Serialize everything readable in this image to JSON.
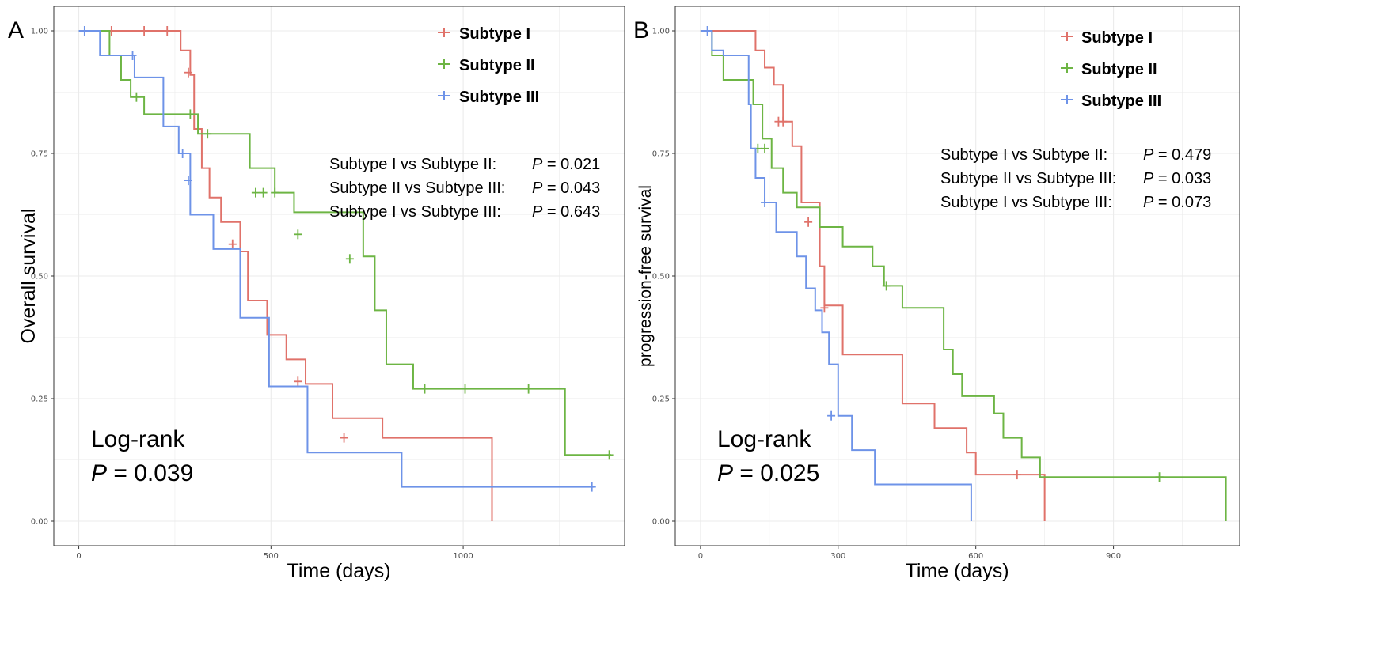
{
  "colors": {
    "subtype_I": "#E0726A",
    "subtype_II": "#6DB544",
    "subtype_III": "#6E93E8",
    "grid": "#ebebeb",
    "panel_border": "#333333"
  },
  "chart_data": [
    {
      "panel": "A",
      "type": "line",
      "step": "post",
      "xlabel": "Time (days)",
      "ylabel": "Overall survival",
      "xlim": [
        -65,
        1420
      ],
      "ylim": [
        -0.05,
        1.05
      ],
      "x_ticks": [
        0,
        500,
        1000
      ],
      "x_tick_labels": [
        "0",
        "500",
        "1000"
      ],
      "y_ticks": [
        0,
        0.25,
        0.5,
        0.75,
        1.0
      ],
      "y_tick_labels": [
        "0.00",
        "0.25",
        "0.50",
        "0.75",
        "1.00"
      ],
      "legend": {
        "position": "top-right",
        "entries": [
          "Subtype I",
          "Subtype II",
          "Subtype III"
        ]
      },
      "annotations": {
        "comparisons": [
          {
            "label": "Subtype I  vs Subtype II:",
            "p_prefix": "P",
            "p_text": " = 0.021"
          },
          {
            "label": "Subtype II vs Subtype III:",
            "p_prefix": "P",
            "p_text": " = 0.043"
          },
          {
            "label": "Subtype I  vs Subtype III:",
            "p_prefix": "P",
            "p_text": " = 0.643"
          }
        ],
        "logrank_title": "Log-rank",
        "logrank_prefix": "P",
        "logrank_text": " = 0.039"
      },
      "series": [
        {
          "name": "Subtype I",
          "x": [
            0,
            250,
            265,
            290,
            300,
            320,
            340,
            370,
            420,
            440,
            490,
            540,
            590,
            660,
            790,
            1075,
            1075
          ],
          "y": [
            1.0,
            1.0,
            0.96,
            0.91,
            0.8,
            0.72,
            0.66,
            0.61,
            0.55,
            0.45,
            0.38,
            0.33,
            0.28,
            0.21,
            0.17,
            0.085,
            0.0
          ],
          "censor_x": [
            85,
            170,
            230,
            285,
            400,
            570,
            690
          ],
          "censor_y": [
            1.0,
            1.0,
            1.0,
            0.915,
            0.565,
            0.285,
            0.17
          ]
        },
        {
          "name": "Subtype II",
          "x": [
            0,
            80,
            110,
            135,
            170,
            230,
            310,
            420,
            445,
            510,
            560,
            740,
            770,
            800,
            870,
            1260,
            1265,
            1385
          ],
          "y": [
            1.0,
            0.95,
            0.9,
            0.865,
            0.83,
            0.83,
            0.79,
            0.79,
            0.72,
            0.67,
            0.63,
            0.54,
            0.43,
            0.32,
            0.27,
            0.27,
            0.135,
            0.135
          ],
          "censor_x": [
            150,
            290,
            335,
            460,
            480,
            510,
            570,
            705,
            900,
            1005,
            1170,
            1380
          ],
          "censor_y": [
            0.865,
            0.83,
            0.79,
            0.67,
            0.67,
            0.67,
            0.585,
            0.535,
            0.27,
            0.27,
            0.27,
            0.135
          ],
          "censor_y_note": ""
        },
        {
          "name": "Subtype III",
          "x": [
            0,
            55,
            145,
            220,
            260,
            290,
            350,
            390,
            420,
            460,
            495,
            595,
            840,
            1340
          ],
          "y": [
            1.0,
            0.95,
            0.905,
            0.805,
            0.75,
            0.625,
            0.555,
            0.555,
            0.415,
            0.415,
            0.275,
            0.14,
            0.07,
            0.07
          ],
          "censor_x": [
            15,
            140,
            270,
            285,
            1335
          ],
          "censor_y": [
            1.0,
            0.95,
            0.75,
            0.695,
            0.07
          ]
        }
      ]
    },
    {
      "panel": "B",
      "type": "line",
      "step": "post",
      "xlabel": "Time (days)",
      "ylabel": "progression-free survival",
      "xlim": [
        -55,
        1175
      ],
      "ylim": [
        -0.05,
        1.05
      ],
      "x_ticks": [
        0,
        300,
        600,
        900
      ],
      "x_tick_labels": [
        "0",
        "300",
        "600",
        "900"
      ],
      "y_ticks": [
        0,
        0.25,
        0.5,
        0.75,
        1.0
      ],
      "y_tick_labels": [
        "0.00",
        "0.25",
        "0.50",
        "0.75",
        "1.00"
      ],
      "legend": {
        "position": "top-right",
        "entries": [
          "Subtype I",
          "Subtype II",
          "Subtype III"
        ]
      },
      "annotations": {
        "comparisons": [
          {
            "label": "Subtype I  vs Subtype II:",
            "p_prefix": "P",
            "p_text": " = 0.479"
          },
          {
            "label": "Subtype II vs Subtype III:",
            "p_prefix": "P",
            "p_text": " = 0.033"
          },
          {
            "label": "Subtype I  vs Subtype III:",
            "p_prefix": "P",
            "p_text": " = 0.073"
          }
        ],
        "logrank_title": "Log-rank",
        "logrank_prefix": "P",
        "logrank_text": " = 0.025"
      },
      "series": [
        {
          "name": "Subtype I",
          "x": [
            0,
            90,
            120,
            140,
            160,
            180,
            200,
            220,
            260,
            270,
            310,
            440,
            510,
            580,
            600,
            750,
            750
          ],
          "y": [
            1.0,
            1.0,
            0.96,
            0.925,
            0.89,
            0.815,
            0.765,
            0.65,
            0.52,
            0.44,
            0.34,
            0.24,
            0.19,
            0.14,
            0.095,
            0.095,
            0.0
          ],
          "censor_x": [
            170,
            180,
            235,
            270,
            690
          ],
          "censor_y": [
            0.815,
            0.815,
            0.61,
            0.435,
            0.095
          ]
        },
        {
          "name": "Subtype II",
          "x": [
            0,
            25,
            50,
            90,
            115,
            135,
            155,
            180,
            210,
            260,
            310,
            375,
            400,
            440,
            530,
            550,
            570,
            640,
            660,
            700,
            740,
            1145,
            1145
          ],
          "y": [
            1.0,
            0.95,
            0.9,
            0.9,
            0.85,
            0.78,
            0.72,
            0.67,
            0.64,
            0.6,
            0.56,
            0.52,
            0.48,
            0.435,
            0.35,
            0.3,
            0.255,
            0.22,
            0.17,
            0.13,
            0.09,
            0.09,
            0.0
          ],
          "censor_x": [
            125,
            140,
            405,
            1000
          ],
          "censor_y": [
            0.76,
            0.76,
            0.48,
            0.09
          ]
        },
        {
          "name": "Subtype III",
          "x": [
            0,
            25,
            50,
            105,
            110,
            120,
            140,
            165,
            210,
            230,
            250,
            265,
            280,
            300,
            330,
            380,
            590,
            590
          ],
          "y": [
            1.0,
            0.96,
            0.95,
            0.85,
            0.76,
            0.7,
            0.65,
            0.59,
            0.54,
            0.475,
            0.43,
            0.385,
            0.32,
            0.215,
            0.145,
            0.075,
            0.075,
            0.0
          ],
          "censor_x": [
            15,
            140,
            285
          ],
          "censor_y": [
            1.0,
            0.65,
            0.215
          ]
        }
      ]
    }
  ]
}
